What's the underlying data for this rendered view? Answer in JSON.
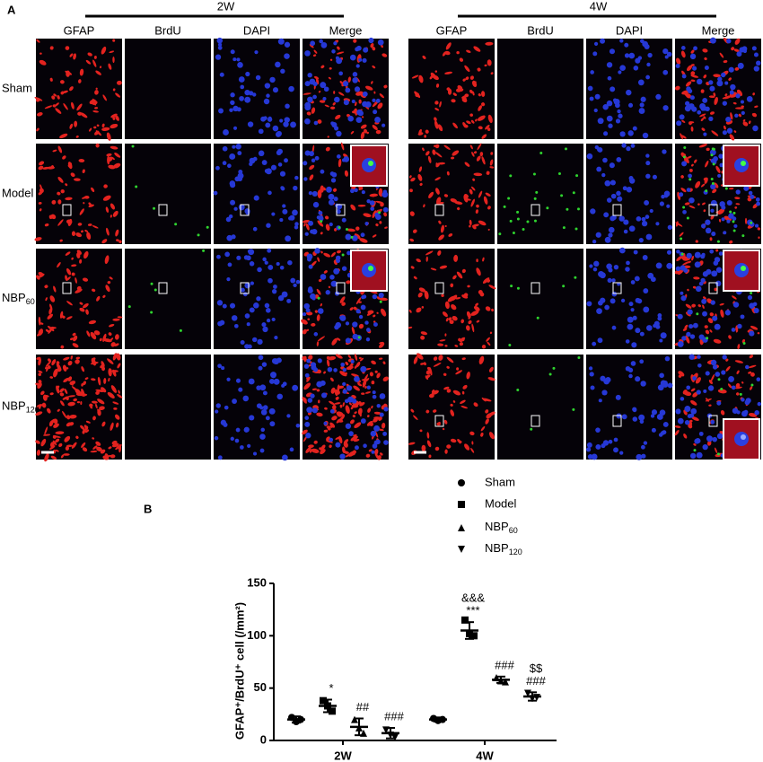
{
  "panel_a": {
    "label": "A",
    "groups": [
      {
        "title": "2W"
      },
      {
        "title": "4W"
      }
    ],
    "columns": [
      "GFAP",
      "BrdU",
      "DAPI",
      "Merge"
    ],
    "rows": [
      "Sham",
      "Model",
      "NBP60",
      "NBP120"
    ]
  },
  "chart_data": {
    "type": "scatter",
    "panel_label": "B",
    "y_label": "GFAP⁺/BrdU⁺ cell (/mm²)",
    "categories": [
      "2W",
      "4W"
    ],
    "ylim": [
      0,
      150
    ],
    "yticks": [
      0,
      50,
      100,
      150
    ],
    "series": [
      {
        "name": "Sham",
        "marker": "circle",
        "color": "#000000",
        "values": [
          20,
          20
        ],
        "sd": [
          3,
          2
        ],
        "points": [
          [
            22,
            18,
            20
          ],
          [
            21,
            19,
            20
          ]
        ]
      },
      {
        "name": "Model",
        "marker": "square",
        "color": "#000000",
        "values": [
          33,
          105
        ],
        "sd": [
          6,
          8
        ],
        "points": [
          [
            38,
            33,
            28
          ],
          [
            115,
            102,
            100
          ]
        ],
        "annotations": [
          [
            "*"
          ],
          [
            "&&&",
            "***"
          ]
        ]
      },
      {
        "name": "NBP60",
        "marker": "triangle-up",
        "color": "#000000",
        "values": [
          13,
          58
        ],
        "sd": [
          8,
          3
        ],
        "points": [
          [
            20,
            12,
            7
          ],
          [
            60,
            57,
            56
          ]
        ],
        "annotations": [
          [
            "##"
          ],
          [
            "###"
          ]
        ]
      },
      {
        "name": "NBP120",
        "marker": "triangle-down",
        "color": "#000000",
        "values": [
          7,
          42
        ],
        "sd": [
          5,
          4
        ],
        "points": [
          [
            10,
            5,
            3
          ],
          [
            45,
            40,
            41
          ]
        ],
        "annotations": [
          [
            "###"
          ],
          [
            "$$",
            "###"
          ]
        ]
      }
    ]
  }
}
